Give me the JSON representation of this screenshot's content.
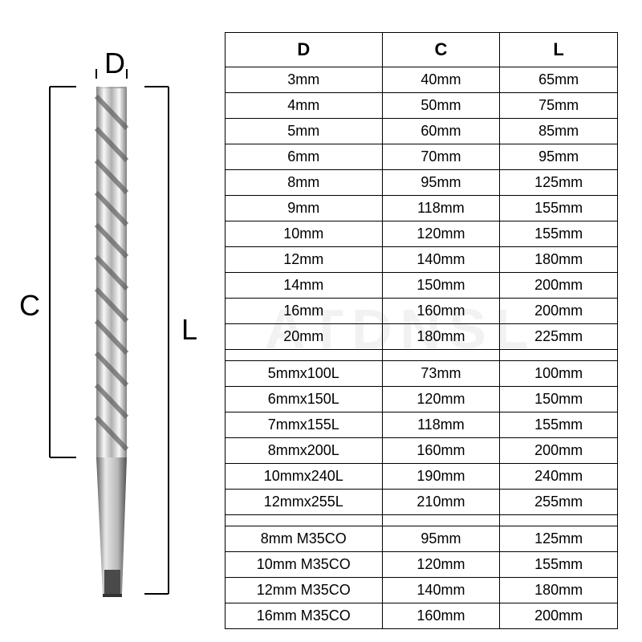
{
  "diagram": {
    "label_d": "D",
    "label_c": "C",
    "label_l": "L",
    "tool_color_light": "#f5f5f5",
    "tool_color_mid": "#cfcfcf",
    "tool_color_dark": "#808080",
    "dim_line_color": "#000000"
  },
  "table": {
    "columns": [
      "D",
      "C",
      "L"
    ],
    "sections": [
      {
        "rows": [
          [
            "3mm",
            "40mm",
            "65mm"
          ],
          [
            "4mm",
            "50mm",
            "75mm"
          ],
          [
            "5mm",
            "60mm",
            "85mm"
          ],
          [
            "6mm",
            "70mm",
            "95mm"
          ],
          [
            "8mm",
            "95mm",
            "125mm"
          ],
          [
            "9mm",
            "118mm",
            "155mm"
          ],
          [
            "10mm",
            "120mm",
            "155mm"
          ],
          [
            "12mm",
            "140mm",
            "180mm"
          ],
          [
            "14mm",
            "150mm",
            "200mm"
          ],
          [
            "16mm",
            "160mm",
            "200mm"
          ],
          [
            "20mm",
            "180mm",
            "225mm"
          ]
        ]
      },
      {
        "rows": [
          [
            "5mmx100L",
            "73mm",
            "100mm"
          ],
          [
            "6mmx150L",
            "120mm",
            "150mm"
          ],
          [
            "7mmx155L",
            "118mm",
            "155mm"
          ],
          [
            "8mmx200L",
            "160mm",
            "200mm"
          ],
          [
            "10mmx240L",
            "190mm",
            "240mm"
          ],
          [
            "12mmx255L",
            "210mm",
            "255mm"
          ]
        ]
      },
      {
        "rows": [
          [
            "8mm M35CO",
            "95mm",
            "125mm"
          ],
          [
            "10mm M35CO",
            "120mm",
            "155mm"
          ],
          [
            "12mm M35CO",
            "140mm",
            "180mm"
          ],
          [
            "16mm M35CO",
            "160mm",
            "200mm"
          ]
        ]
      }
    ],
    "header_fontsize": 22,
    "cell_fontsize": 18,
    "border_color": "#000000",
    "background_color": "#ffffff",
    "col_widths_pct": [
      40,
      30,
      30
    ]
  },
  "watermark": {
    "text": "ATDNSL",
    "color": "rgba(0,0,0,0.05)"
  }
}
